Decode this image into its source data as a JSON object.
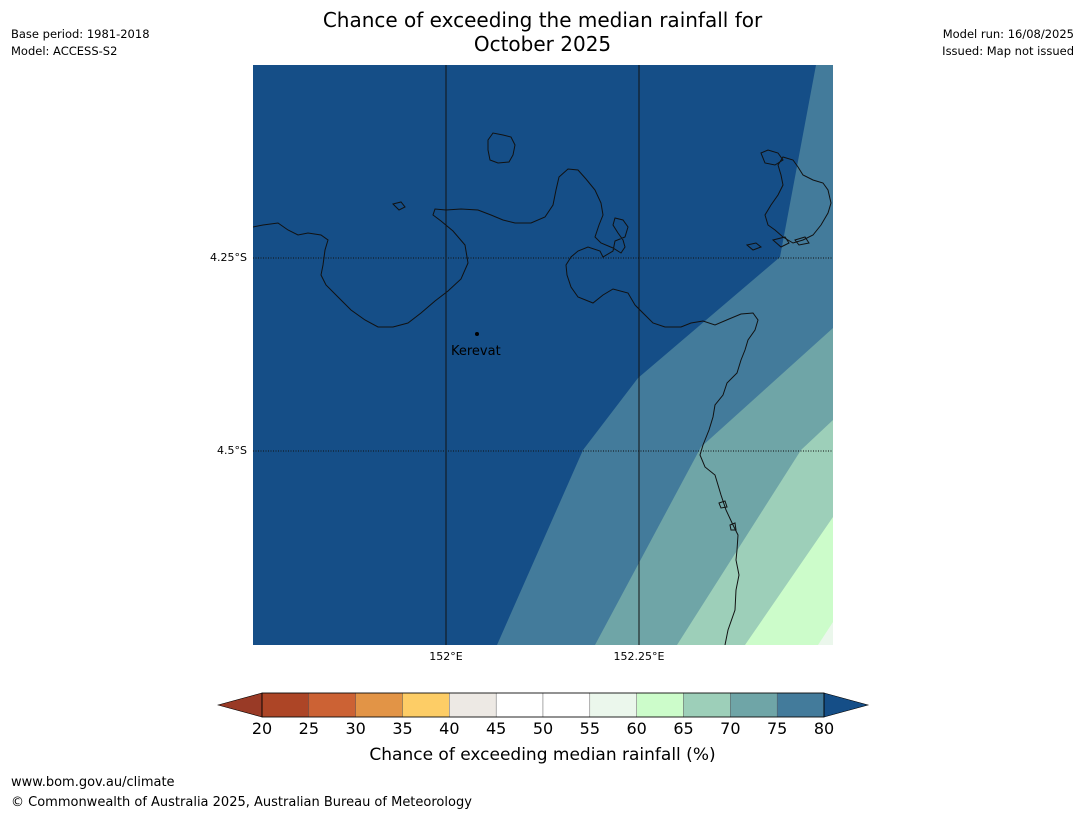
{
  "header": {
    "title_line1": "Chance of exceeding the median rainfall for",
    "title_line2": "October 2025",
    "base_period": "Base period: 1981-2018",
    "model": "Model: ACCESS-S2",
    "model_run": "Model run: 16/08/2025",
    "issued": "Issued: Map not issued"
  },
  "map": {
    "latitude_labels": [
      "4.25°S",
      "4.5°S"
    ],
    "longitude_labels": [
      "152°E",
      "152.25°E"
    ],
    "place_label": "Kerevat",
    "zone_colors": {
      "80plus": "#154e87",
      "75_80": "#437b9b",
      "70_75": "#6fa5a7",
      "65_70": "#9dcfb9",
      "60_65": "#ccfcca",
      "55_60": "#ebf7ec"
    }
  },
  "colorbar": {
    "ticks": [
      "20",
      "25",
      "30",
      "35",
      "40",
      "45",
      "50",
      "55",
      "60",
      "65",
      "70",
      "75",
      "80"
    ],
    "segment_colors": [
      "#ad4526",
      "#cc6234",
      "#e29446",
      "#fdcd66",
      "#ede9e4",
      "#ffffff",
      "#ffffff",
      "#ebf7ec",
      "#ccfcca",
      "#9dcfb9",
      "#6fa5a7",
      "#437b9b"
    ],
    "low_extension_color": "#993a26",
    "high_extension_color": "#154e87",
    "title": "Chance of exceeding median rainfall (%)"
  },
  "footer": {
    "url": "www.bom.gov.au/climate",
    "copyright": "© Commonwealth of Australia 2025, Australian Bureau of Meteorology"
  }
}
